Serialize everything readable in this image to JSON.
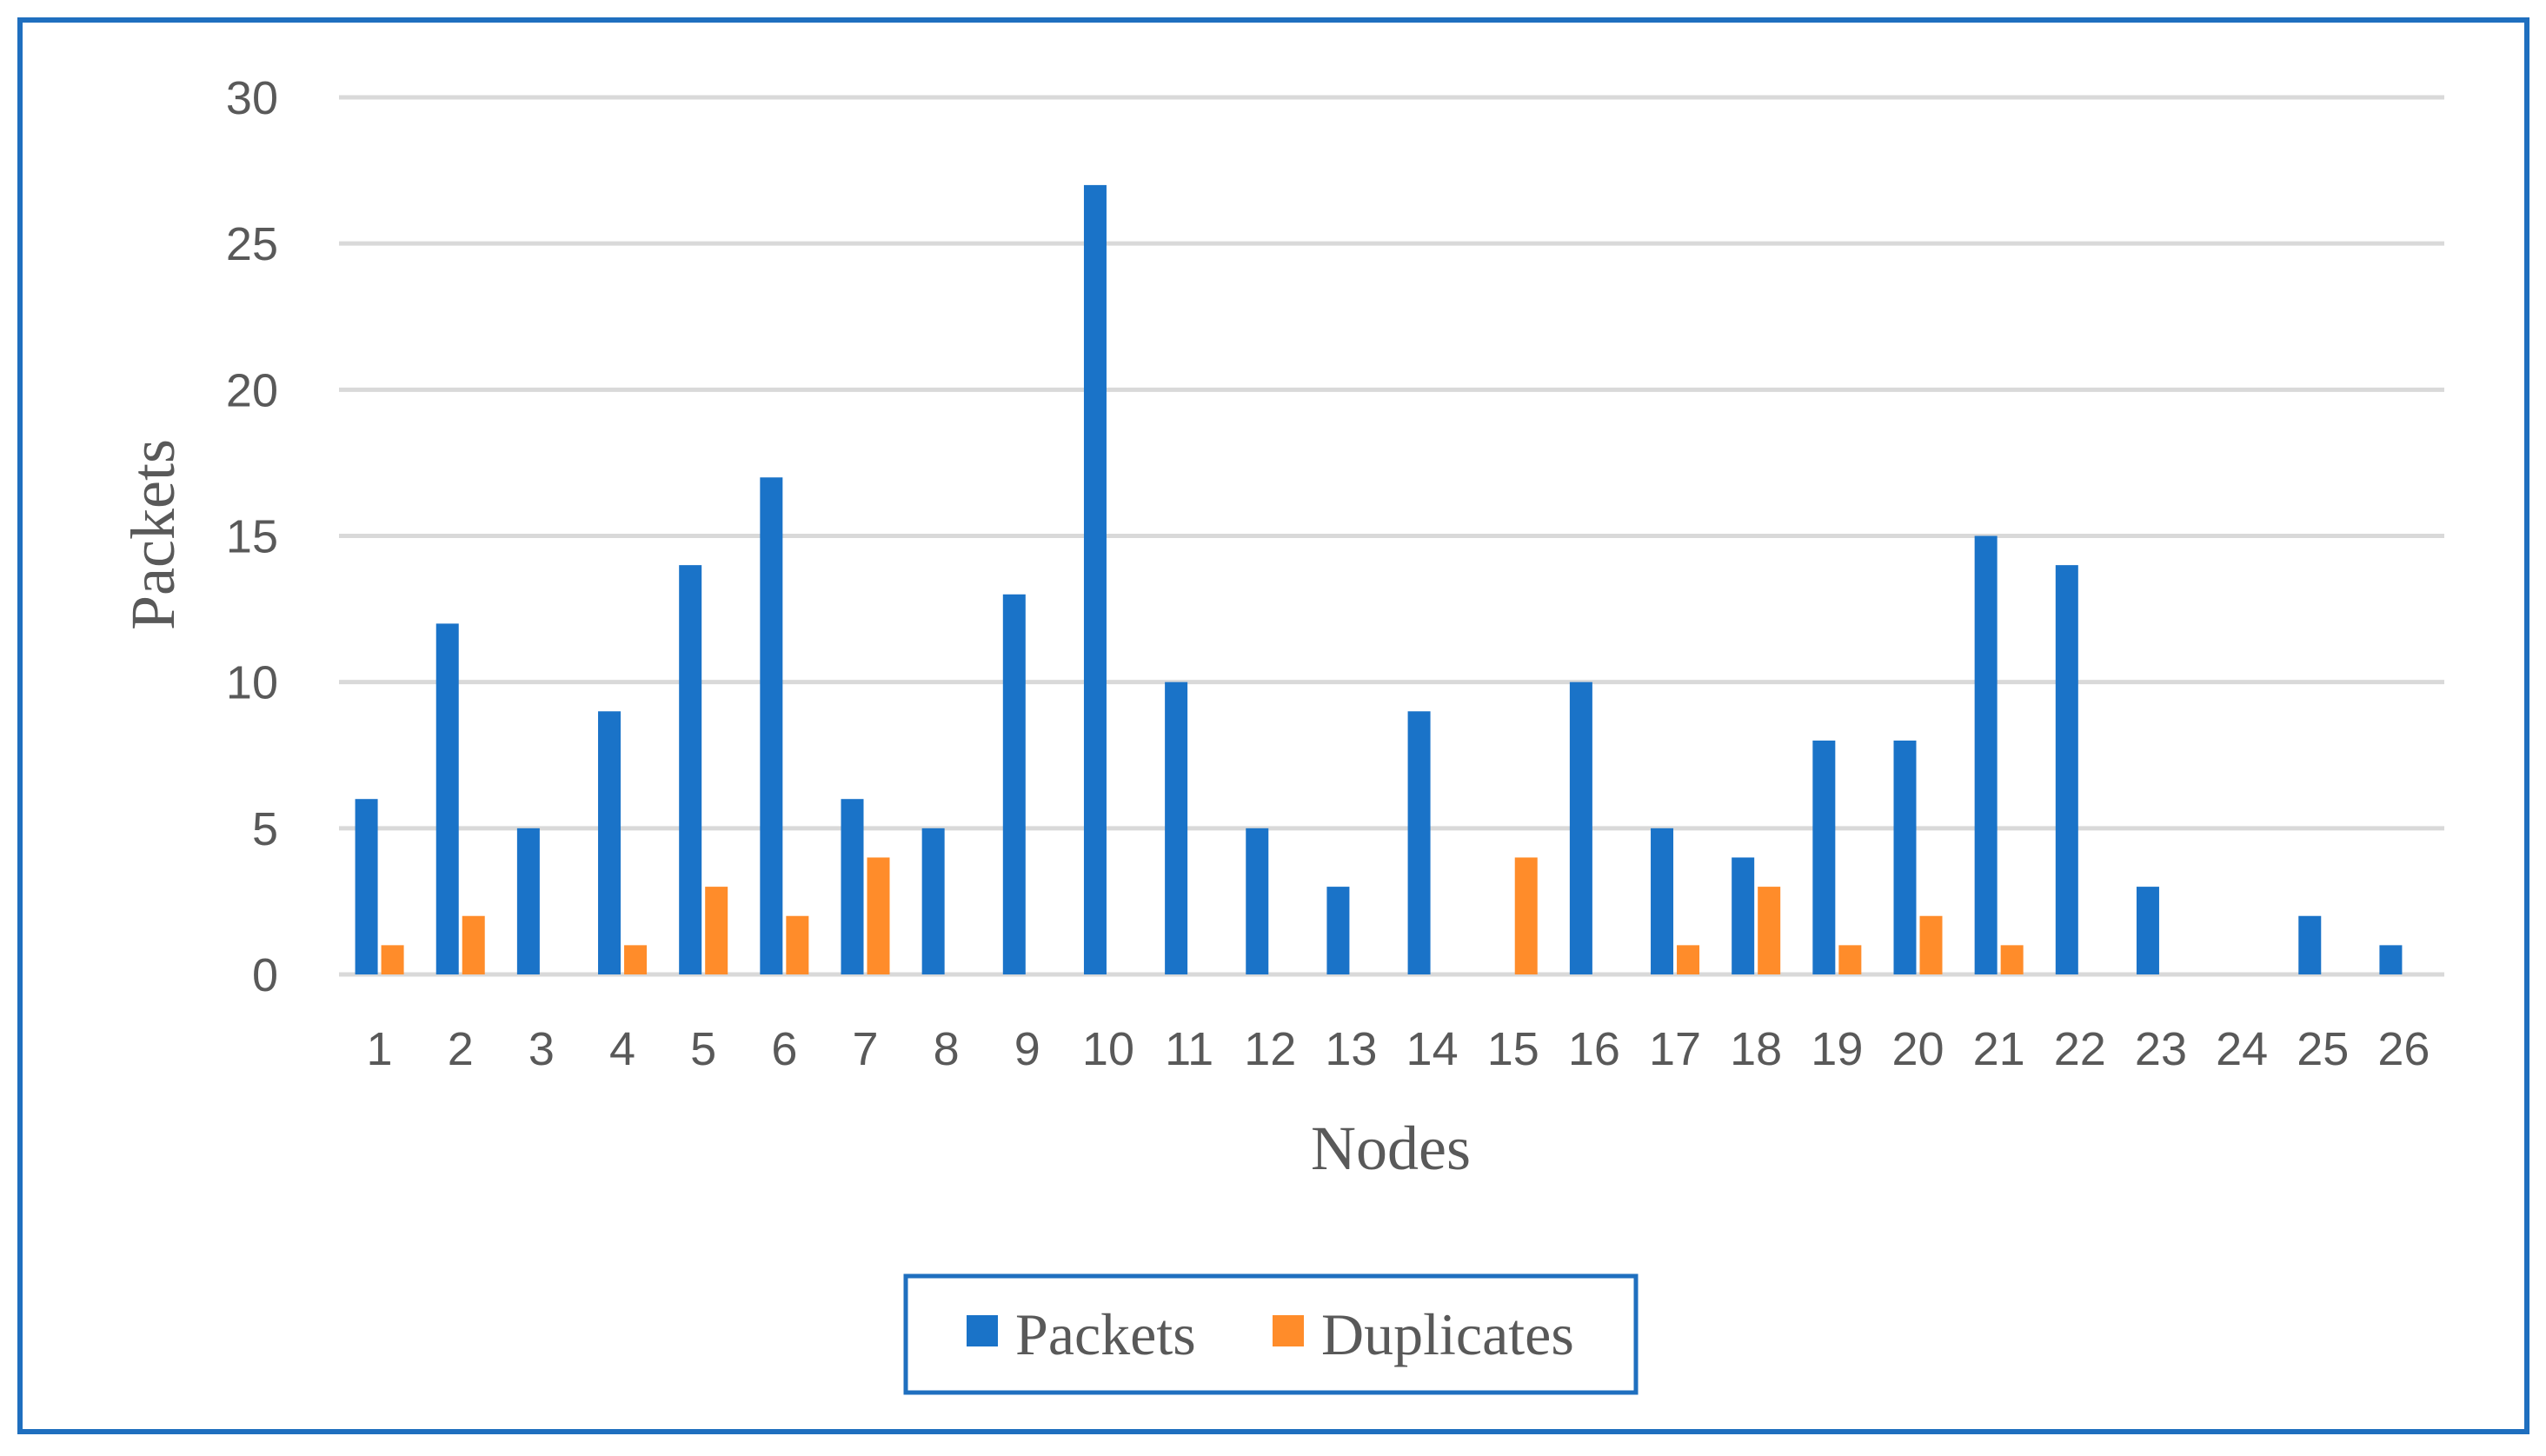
{
  "chart_data": {
    "type": "bar",
    "categories": [
      "1",
      "2",
      "3",
      "4",
      "5",
      "6",
      "7",
      "8",
      "9",
      "10",
      "11",
      "12",
      "13",
      "14",
      "15",
      "16",
      "17",
      "18",
      "19",
      "20",
      "21",
      "22",
      "23",
      "24",
      "25",
      "26"
    ],
    "series": [
      {
        "name": "Packets",
        "color": "#1a73c8",
        "values": [
          6,
          12,
          5,
          9,
          14,
          17,
          6,
          5,
          13,
          27,
          10,
          5,
          3,
          9,
          0,
          10,
          5,
          4,
          8,
          8,
          15,
          14,
          3,
          0,
          2,
          1
        ]
      },
      {
        "name": "Duplicates",
        "color": "#ff8c2a",
        "values": [
          1,
          2,
          0,
          1,
          3,
          2,
          4,
          0,
          0,
          0,
          0,
          0,
          0,
          0,
          4,
          0,
          1,
          3,
          1,
          2,
          1,
          0,
          0,
          0,
          0,
          0
        ]
      }
    ],
    "xlabel": "Nodes",
    "ylabel": "Packets",
    "ylim": [
      0,
      30
    ],
    "yticks": [
      0,
      5,
      10,
      15,
      20,
      25,
      30
    ],
    "grid": true,
    "legend": "bottom-center"
  }
}
